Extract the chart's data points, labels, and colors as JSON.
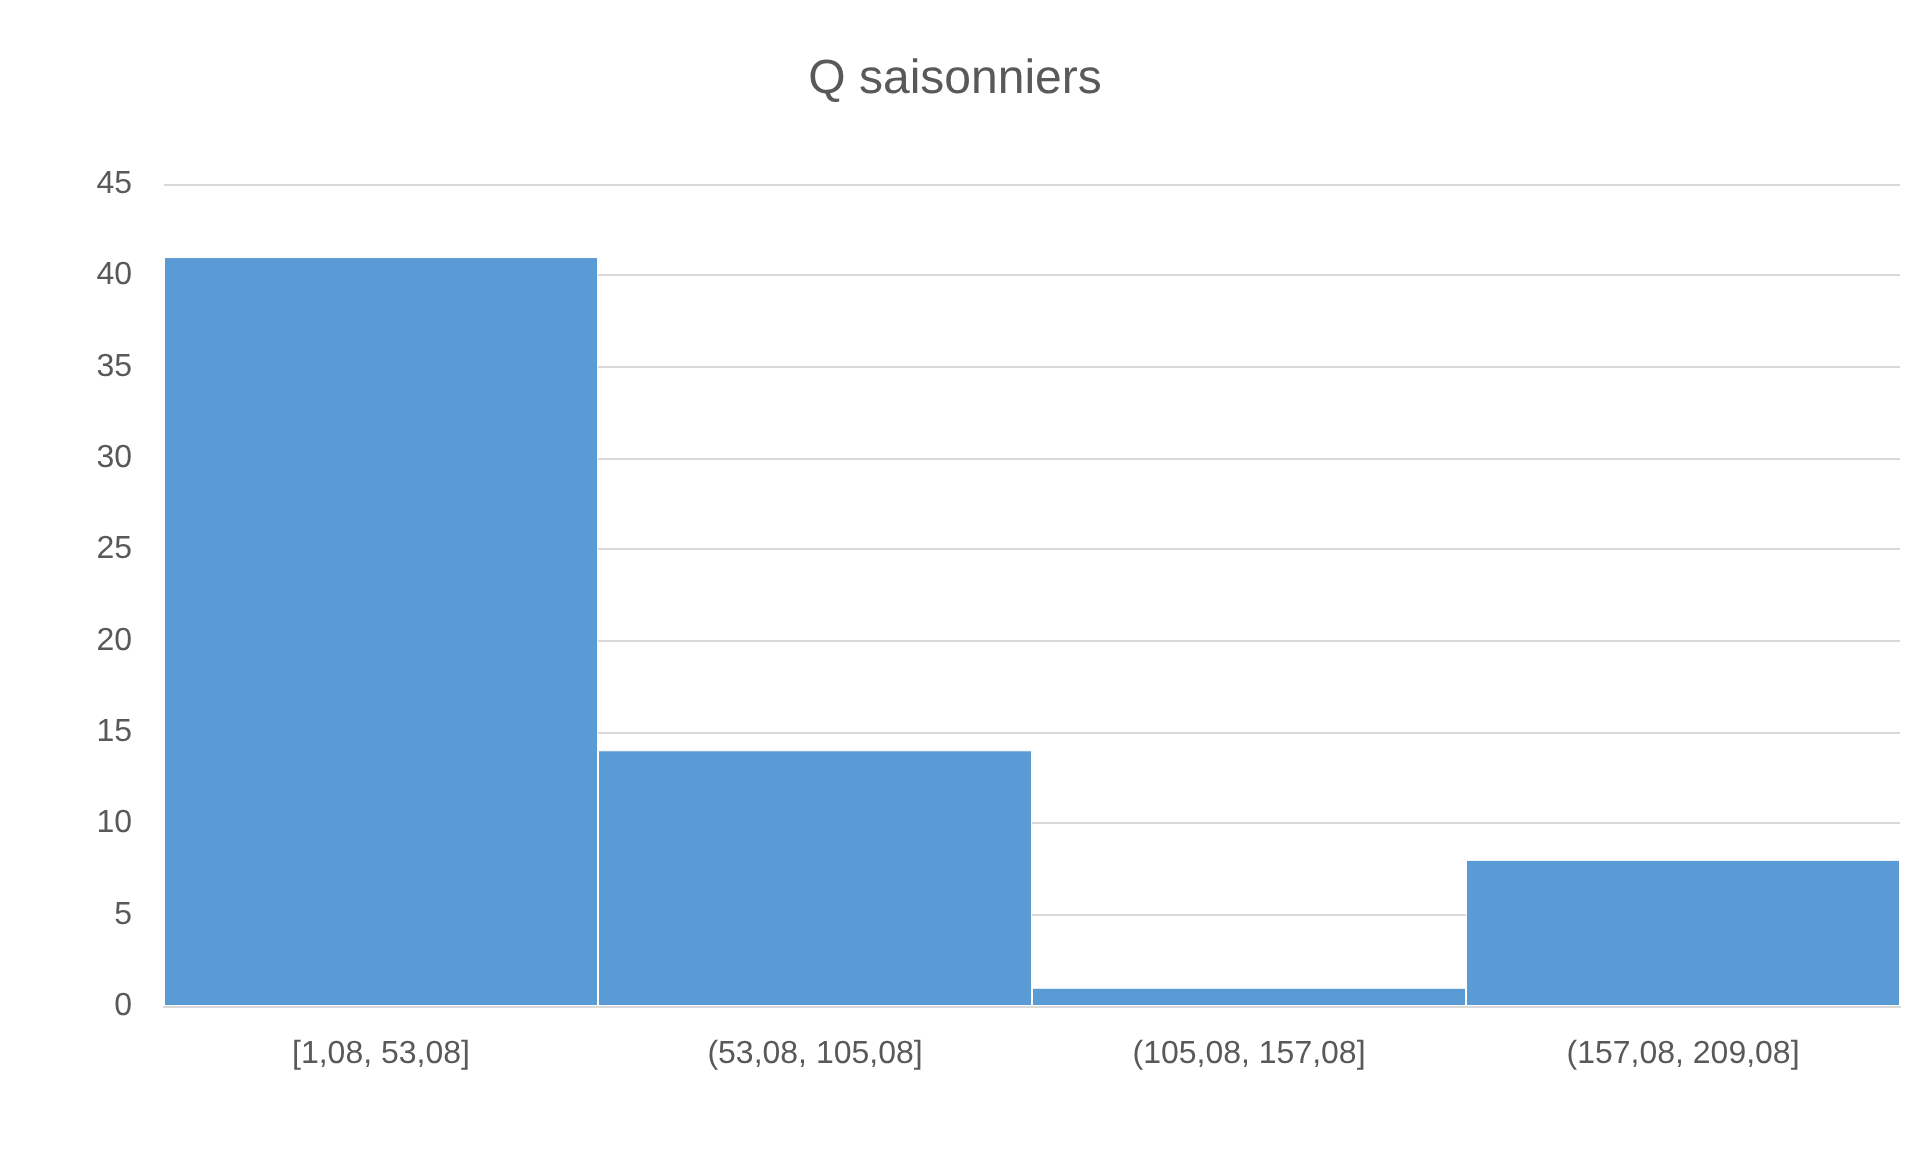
{
  "chart_data": {
    "type": "bar",
    "title": "Q saisonniers",
    "categories": [
      "[1,08, 53,08]",
      "(53,08, 105,08]",
      "(105,08, 157,08]",
      "(157,08, 209,08]"
    ],
    "values": [
      41,
      14,
      1,
      8
    ],
    "color": "#5b9bd5",
    "ylim": [
      0,
      45
    ],
    "yticks": [
      0,
      5,
      10,
      15,
      20,
      25,
      30,
      35,
      40,
      45
    ],
    "grid": "y"
  }
}
